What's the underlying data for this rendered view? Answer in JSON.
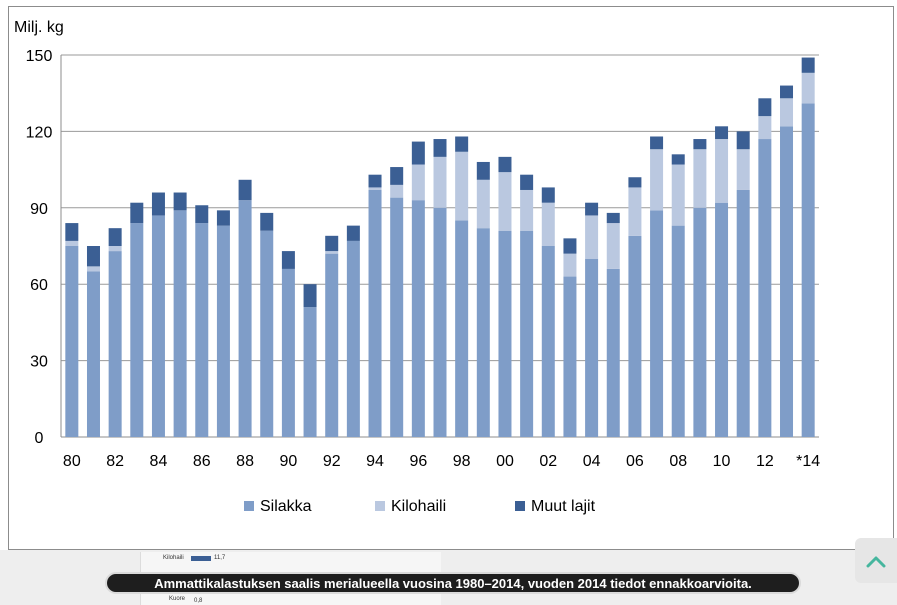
{
  "chart_data": {
    "type": "bar",
    "stacked": true,
    "ylabel": "Milj. kg",
    "ylim": [
      0,
      150
    ],
    "yticks": [
      "0",
      "30",
      "60",
      "90",
      "120",
      "150"
    ],
    "grid": "horizontal",
    "legend_placement": "bottom",
    "categories": [
      "1980",
      "1981",
      "1982",
      "1983",
      "1984",
      "1985",
      "1986",
      "1987",
      "1988",
      "1989",
      "1990",
      "1991",
      "1992",
      "1993",
      "1994",
      "1995",
      "1996",
      "1997",
      "1998",
      "1999",
      "2000",
      "2001",
      "2002",
      "2003",
      "2004",
      "2005",
      "2006",
      "2007",
      "2008",
      "2009",
      "2010",
      "2011",
      "2012",
      "2013",
      "2014"
    ],
    "xtick_labels": [
      "80",
      "82",
      "84",
      "86",
      "88",
      "90",
      "92",
      "94",
      "96",
      "98",
      "00",
      "02",
      "04",
      "06",
      "08",
      "10",
      "12",
      "*14"
    ],
    "series": [
      {
        "name": "Silakka",
        "color": "#7f9dc8",
        "values": [
          75,
          65,
          73,
          84,
          87,
          89,
          84,
          83,
          93,
          81,
          66,
          51,
          72,
          77,
          97,
          94,
          93,
          90,
          85,
          82,
          81,
          81,
          75,
          63,
          70,
          66,
          79,
          89,
          83,
          90,
          92,
          97,
          117,
          122,
          131
        ]
      },
      {
        "name": "Kilohaili",
        "color": "#bac8e0",
        "values": [
          2,
          2,
          2,
          0,
          0,
          0,
          0,
          0,
          0,
          0,
          0,
          0,
          1,
          0,
          1,
          5,
          14,
          20,
          27,
          19,
          23,
          16,
          17,
          9,
          17,
          18,
          19,
          24,
          24,
          23,
          25,
          16,
          9,
          11,
          12
        ]
      },
      {
        "name": "Muut lajit",
        "color": "#3b5f94",
        "values": [
          7,
          8,
          7,
          8,
          9,
          7,
          7,
          6,
          8,
          7,
          7,
          9,
          6,
          6,
          5,
          7,
          9,
          7,
          6,
          7,
          6,
          6,
          6,
          6,
          5,
          4,
          4,
          5,
          4,
          4,
          5,
          7,
          7,
          5,
          6
        ]
      }
    ]
  },
  "caption": "Ammattikalastuksen saalis merialueella vuosina 1980–2014, vuoden 2014 tiedot ennakkoarvioita.",
  "background_sheet": {
    "label_1": "Kilohaili",
    "value_1": "11,7",
    "label_2": "Kuore",
    "value_2": "0,8"
  },
  "scroll_top": {
    "icon": "chevron-up-icon",
    "color": "#46b69e"
  }
}
